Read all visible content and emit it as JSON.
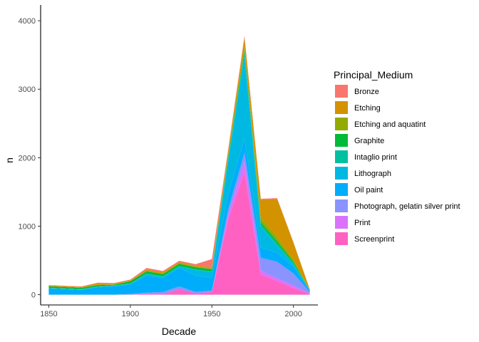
{
  "chart_data": {
    "type": "area",
    "stacked": true,
    "xlabel": "Decade",
    "ylabel": "n",
    "xlim": [
      1845,
      2015
    ],
    "ylim": [
      -150,
      4230
    ],
    "x_ticks": [
      1850,
      1900,
      1950,
      2000
    ],
    "y_ticks": [
      0,
      1000,
      2000,
      3000,
      4000
    ],
    "grid": false,
    "legend_title": "Principal_Medium",
    "legend_position": "right",
    "x": [
      1850,
      1860,
      1870,
      1880,
      1890,
      1900,
      1910,
      1920,
      1930,
      1940,
      1950,
      1960,
      1970,
      1980,
      1990,
      2000,
      2010
    ],
    "series": [
      {
        "name": "Bronze",
        "color": "#F8766D",
        "values": [
          5,
          5,
          5,
          15,
          10,
          10,
          25,
          20,
          20,
          20,
          120,
          30,
          30,
          20,
          10,
          5,
          2
        ]
      },
      {
        "name": "Etching",
        "color": "#D39200",
        "values": [
          10,
          10,
          10,
          15,
          10,
          10,
          15,
          15,
          15,
          15,
          20,
          60,
          130,
          260,
          560,
          250,
          4
        ]
      },
      {
        "name": "Etching and aquatint",
        "color": "#93AA00",
        "values": [
          5,
          5,
          5,
          5,
          5,
          5,
          10,
          10,
          10,
          10,
          10,
          20,
          40,
          60,
          60,
          30,
          4
        ]
      },
      {
        "name": "Graphite",
        "color": "#00BA38",
        "values": [
          20,
          20,
          20,
          20,
          10,
          30,
          30,
          30,
          30,
          30,
          30,
          30,
          40,
          30,
          30,
          20,
          2
        ]
      },
      {
        "name": "Intaglio print",
        "color": "#00C19F",
        "values": [
          5,
          5,
          5,
          5,
          5,
          5,
          10,
          10,
          10,
          10,
          10,
          40,
          60,
          40,
          40,
          20,
          4
        ]
      },
      {
        "name": "Lithograph",
        "color": "#00B9E3",
        "values": [
          5,
          5,
          5,
          5,
          10,
          10,
          20,
          20,
          20,
          80,
          80,
          470,
          1200,
          300,
          100,
          30,
          4
        ]
      },
      {
        "name": "Oil paint",
        "color": "#00ADFA",
        "values": [
          90,
          80,
          70,
          110,
          120,
          140,
          250,
          200,
          270,
          240,
          190,
          230,
          210,
          150,
          130,
          100,
          20
        ]
      },
      {
        "name": "Photograph, gelatin silver print",
        "color": "#8B93FF",
        "values": [
          0,
          0,
          0,
          0,
          0,
          10,
          20,
          30,
          40,
          20,
          20,
          80,
          120,
          190,
          240,
          180,
          20
        ]
      },
      {
        "name": "Print",
        "color": "#DB72FB",
        "values": [
          0,
          0,
          0,
          0,
          0,
          0,
          0,
          0,
          0,
          0,
          0,
          60,
          150,
          50,
          40,
          30,
          10
        ]
      },
      {
        "name": "Screenprint",
        "color": "#FF61C3",
        "values": [
          0,
          0,
          0,
          0,
          0,
          0,
          10,
          10,
          80,
          20,
          40,
          1100,
          1800,
          300,
          200,
          100,
          10
        ]
      }
    ]
  }
}
